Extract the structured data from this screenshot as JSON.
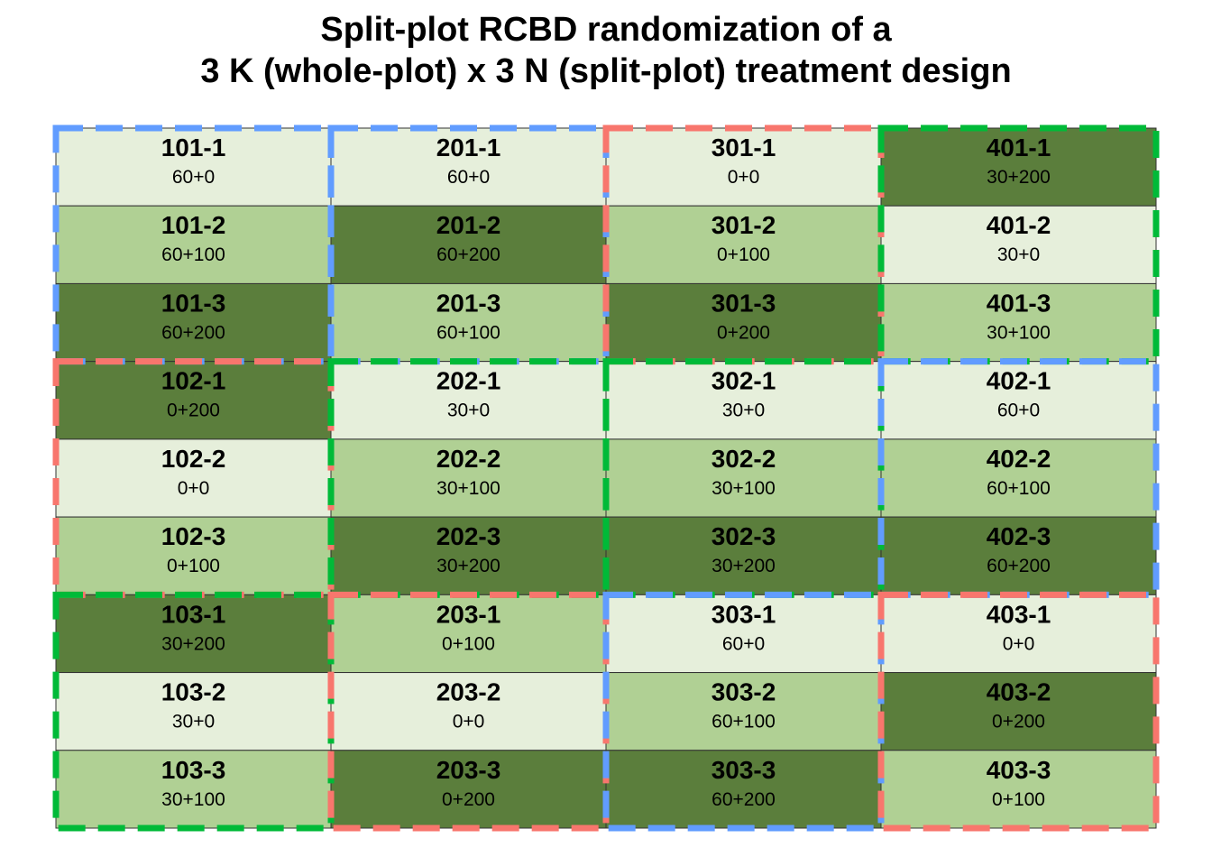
{
  "title": {
    "line1": "Split-plot RCBD randomization of a",
    "line2": "3 K (whole-plot) x 3 N (split-plot) treatment design"
  },
  "colors": {
    "n_levels": {
      "0": "#e6efdb",
      "100": "#b0d094",
      "200": "#5b7e3c"
    },
    "k_levels": {
      "0": "#f8766d",
      "30": "#00ba38",
      "60": "#619cff"
    },
    "grid_line": "#333333"
  },
  "layout": {
    "columns": 4,
    "rows": 9,
    "plot_id_format": "block*100 + whole-plot - split-plot",
    "plots": [
      {
        "id": "101-1",
        "trt": "60+0",
        "k": "60",
        "n": "0",
        "col": 0,
        "row": 0
      },
      {
        "id": "101-2",
        "trt": "60+100",
        "k": "60",
        "n": "100",
        "col": 0,
        "row": 1
      },
      {
        "id": "101-3",
        "trt": "60+200",
        "k": "60",
        "n": "200",
        "col": 0,
        "row": 2
      },
      {
        "id": "102-1",
        "trt": "0+200",
        "k": "0",
        "n": "200",
        "col": 0,
        "row": 3
      },
      {
        "id": "102-2",
        "trt": "0+0",
        "k": "0",
        "n": "0",
        "col": 0,
        "row": 4
      },
      {
        "id": "102-3",
        "trt": "0+100",
        "k": "0",
        "n": "100",
        "col": 0,
        "row": 5
      },
      {
        "id": "103-1",
        "trt": "30+200",
        "k": "30",
        "n": "200",
        "col": 0,
        "row": 6
      },
      {
        "id": "103-2",
        "trt": "30+0",
        "k": "30",
        "n": "0",
        "col": 0,
        "row": 7
      },
      {
        "id": "103-3",
        "trt": "30+100",
        "k": "30",
        "n": "100",
        "col": 0,
        "row": 8
      },
      {
        "id": "201-1",
        "trt": "60+0",
        "k": "60",
        "n": "0",
        "col": 1,
        "row": 0
      },
      {
        "id": "201-2",
        "trt": "60+200",
        "k": "60",
        "n": "200",
        "col": 1,
        "row": 1
      },
      {
        "id": "201-3",
        "trt": "60+100",
        "k": "60",
        "n": "100",
        "col": 1,
        "row": 2
      },
      {
        "id": "202-1",
        "trt": "30+0",
        "k": "30",
        "n": "0",
        "col": 1,
        "row": 3
      },
      {
        "id": "202-2",
        "trt": "30+100",
        "k": "30",
        "n": "100",
        "col": 1,
        "row": 4
      },
      {
        "id": "202-3",
        "trt": "30+200",
        "k": "30",
        "n": "200",
        "col": 1,
        "row": 5
      },
      {
        "id": "203-1",
        "trt": "0+100",
        "k": "0",
        "n": "100",
        "col": 1,
        "row": 6
      },
      {
        "id": "203-2",
        "trt": "0+0",
        "k": "0",
        "n": "0",
        "col": 1,
        "row": 7
      },
      {
        "id": "203-3",
        "trt": "0+200",
        "k": "0",
        "n": "200",
        "col": 1,
        "row": 8
      },
      {
        "id": "301-1",
        "trt": "0+0",
        "k": "0",
        "n": "0",
        "col": 2,
        "row": 0
      },
      {
        "id": "301-2",
        "trt": "0+100",
        "k": "0",
        "n": "100",
        "col": 2,
        "row": 1
      },
      {
        "id": "301-3",
        "trt": "0+200",
        "k": "0",
        "n": "200",
        "col": 2,
        "row": 2
      },
      {
        "id": "302-1",
        "trt": "30+0",
        "k": "30",
        "n": "0",
        "col": 2,
        "row": 3
      },
      {
        "id": "302-2",
        "trt": "30+100",
        "k": "30",
        "n": "100",
        "col": 2,
        "row": 4
      },
      {
        "id": "302-3",
        "trt": "30+200",
        "k": "30",
        "n": "200",
        "col": 2,
        "row": 5
      },
      {
        "id": "303-1",
        "trt": "60+0",
        "k": "60",
        "n": "0",
        "col": 2,
        "row": 6
      },
      {
        "id": "303-2",
        "trt": "60+100",
        "k": "60",
        "n": "100",
        "col": 2,
        "row": 7
      },
      {
        "id": "303-3",
        "trt": "60+200",
        "k": "60",
        "n": "200",
        "col": 2,
        "row": 8
      },
      {
        "id": "401-1",
        "trt": "30+200",
        "k": "30",
        "n": "200",
        "col": 3,
        "row": 0
      },
      {
        "id": "401-2",
        "trt": "30+0",
        "k": "30",
        "n": "0",
        "col": 3,
        "row": 1
      },
      {
        "id": "401-3",
        "trt": "30+100",
        "k": "30",
        "n": "100",
        "col": 3,
        "row": 2
      },
      {
        "id": "402-1",
        "trt": "60+0",
        "k": "60",
        "n": "0",
        "col": 3,
        "row": 3
      },
      {
        "id": "402-2",
        "trt": "60+100",
        "k": "60",
        "n": "100",
        "col": 3,
        "row": 4
      },
      {
        "id": "402-3",
        "trt": "60+200",
        "k": "60",
        "n": "200",
        "col": 3,
        "row": 5
      },
      {
        "id": "403-1",
        "trt": "0+0",
        "k": "0",
        "n": "0",
        "col": 3,
        "row": 6
      },
      {
        "id": "403-2",
        "trt": "0+200",
        "k": "0",
        "n": "200",
        "col": 3,
        "row": 7
      },
      {
        "id": "403-3",
        "trt": "0+100",
        "k": "0",
        "n": "100",
        "col": 3,
        "row": 8
      }
    ],
    "whole_plots": [
      {
        "k": "60",
        "col": 0,
        "row_start": 0,
        "row_end": 2
      },
      {
        "k": "0",
        "col": 0,
        "row_start": 3,
        "row_end": 5
      },
      {
        "k": "30",
        "col": 0,
        "row_start": 6,
        "row_end": 8
      },
      {
        "k": "60",
        "col": 1,
        "row_start": 0,
        "row_end": 2
      },
      {
        "k": "30",
        "col": 1,
        "row_start": 3,
        "row_end": 5
      },
      {
        "k": "0",
        "col": 1,
        "row_start": 6,
        "row_end": 8
      },
      {
        "k": "0",
        "col": 2,
        "row_start": 0,
        "row_end": 2
      },
      {
        "k": "30",
        "col": 2,
        "row_start": 3,
        "row_end": 5
      },
      {
        "k": "60",
        "col": 2,
        "row_start": 6,
        "row_end": 8
      },
      {
        "k": "30",
        "col": 3,
        "row_start": 0,
        "row_end": 2
      },
      {
        "k": "60",
        "col": 3,
        "row_start": 3,
        "row_end": 5
      },
      {
        "k": "0",
        "col": 3,
        "row_start": 6,
        "row_end": 8
      }
    ]
  }
}
